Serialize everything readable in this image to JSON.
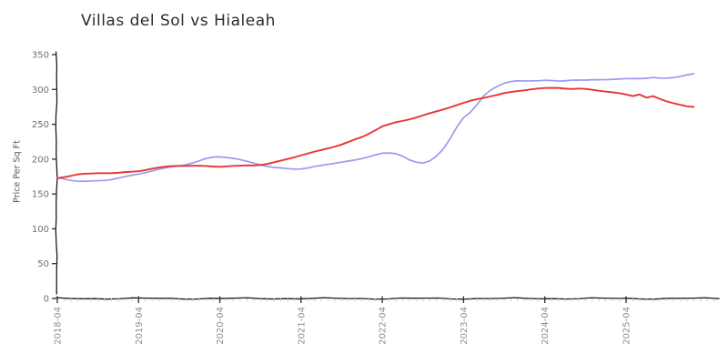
{
  "title": "Villas del Sol vs Hialeah",
  "axes": {
    "ylabel": "Price Per Sq Ft",
    "y_ticks": [
      0,
      50,
      100,
      150,
      200,
      250,
      300,
      350
    ],
    "x_major_ticks": [
      "2018-04",
      "2019-04",
      "2020-04",
      "2021-04",
      "2022-04",
      "2023-04",
      "2024-04",
      "2025-04"
    ],
    "tick_label_color": "#8f8f8f",
    "axis_color": "#1a1a1a"
  },
  "chart_data": {
    "type": "line",
    "title": "Villas del Sol vs Hialeah",
    "xlabel": "",
    "ylabel": "Price Per Sq Ft",
    "ylim": [
      0,
      350
    ],
    "grid": false,
    "legend_position": "none",
    "style": "xkcd-sketch",
    "x_frequency": "monthly",
    "x": [
      "2018-04",
      "2018-05",
      "2018-06",
      "2018-07",
      "2018-08",
      "2018-09",
      "2018-10",
      "2018-11",
      "2018-12",
      "2019-01",
      "2019-02",
      "2019-03",
      "2019-04",
      "2019-05",
      "2019-06",
      "2019-07",
      "2019-08",
      "2019-09",
      "2019-10",
      "2019-11",
      "2019-12",
      "2020-01",
      "2020-02",
      "2020-03",
      "2020-04",
      "2020-05",
      "2020-06",
      "2020-07",
      "2020-08",
      "2020-09",
      "2020-10",
      "2020-11",
      "2020-12",
      "2021-01",
      "2021-02",
      "2021-03",
      "2021-04",
      "2021-05",
      "2021-06",
      "2021-07",
      "2021-08",
      "2021-09",
      "2021-10",
      "2021-11",
      "2021-12",
      "2022-01",
      "2022-02",
      "2022-03",
      "2022-04",
      "2022-05",
      "2022-06",
      "2022-07",
      "2022-08",
      "2022-09",
      "2022-10",
      "2022-11",
      "2022-12",
      "2023-01",
      "2023-02",
      "2023-03",
      "2023-04",
      "2023-05",
      "2023-06",
      "2023-07",
      "2023-08",
      "2023-09",
      "2023-10",
      "2023-11",
      "2023-12",
      "2024-01",
      "2024-02",
      "2024-03",
      "2024-04",
      "2024-05",
      "2024-06",
      "2024-07",
      "2024-08",
      "2024-09",
      "2024-10",
      "2024-11",
      "2024-12",
      "2025-01",
      "2025-02",
      "2025-03",
      "2025-04",
      "2025-05",
      "2025-06",
      "2025-07",
      "2025-08",
      "2025-09",
      "2025-10",
      "2025-11",
      "2025-12",
      "2026-01",
      "2026-02"
    ],
    "series": [
      {
        "name": "Villas del Sol",
        "color": "#e93434",
        "line_width": 1.9,
        "values": [
          173,
          174.5,
          176,
          177.5,
          178,
          178.5,
          179.5,
          180,
          180,
          180.5,
          181.5,
          182.5,
          183.5,
          185,
          186.5,
          187.5,
          188.5,
          189.5,
          190,
          190,
          190,
          190,
          190,
          190,
          190,
          190.5,
          190.5,
          190.5,
          191,
          191,
          191.5,
          192.5,
          194.5,
          197,
          200,
          203,
          206,
          208.5,
          211,
          213.5,
          216,
          218.5,
          221,
          224,
          227.5,
          231,
          236,
          241.5,
          247,
          250,
          253,
          255.5,
          258,
          260.5,
          263,
          265.5,
          268,
          271,
          274,
          277,
          280,
          283,
          286,
          288.5,
          291,
          293,
          295,
          296.5,
          298,
          299,
          300,
          300.5,
          301,
          301.5,
          302,
          301.5,
          301,
          301.5,
          301,
          300,
          299,
          297.5,
          296,
          294,
          292,
          290,
          292.5,
          288,
          290,
          286,
          283,
          281,
          279,
          276.5,
          275
        ]
      },
      {
        "name": "Hialeah",
        "color": "#9a9af0",
        "line_width": 1.7,
        "values": [
          173,
          171.5,
          170,
          169,
          168.5,
          169,
          169.5,
          170,
          171,
          172.5,
          174,
          176,
          178,
          180.5,
          183,
          185.5,
          187.5,
          189.5,
          191,
          193,
          195,
          197.5,
          200.5,
          202.5,
          203,
          202,
          200.5,
          198.5,
          196.5,
          194.5,
          192.5,
          190.5,
          188.5,
          187.5,
          186.5,
          186,
          186,
          187,
          188.5,
          190,
          192,
          194,
          196,
          197.5,
          199,
          201,
          204,
          207,
          209,
          208.5,
          207,
          203.5,
          198.5,
          195.5,
          194,
          197,
          204,
          215,
          230,
          247,
          260,
          267,
          278,
          291,
          299,
          304,
          308,
          310.5,
          312,
          312.5,
          313,
          313,
          313.5,
          313,
          312.5,
          313,
          313.5,
          313,
          312.5,
          313,
          313.5,
          314,
          314.5,
          315,
          315.5,
          316,
          316.5,
          317,
          317.5,
          316,
          315.5,
          316.5,
          318.5,
          320.5,
          322
        ]
      }
    ]
  }
}
